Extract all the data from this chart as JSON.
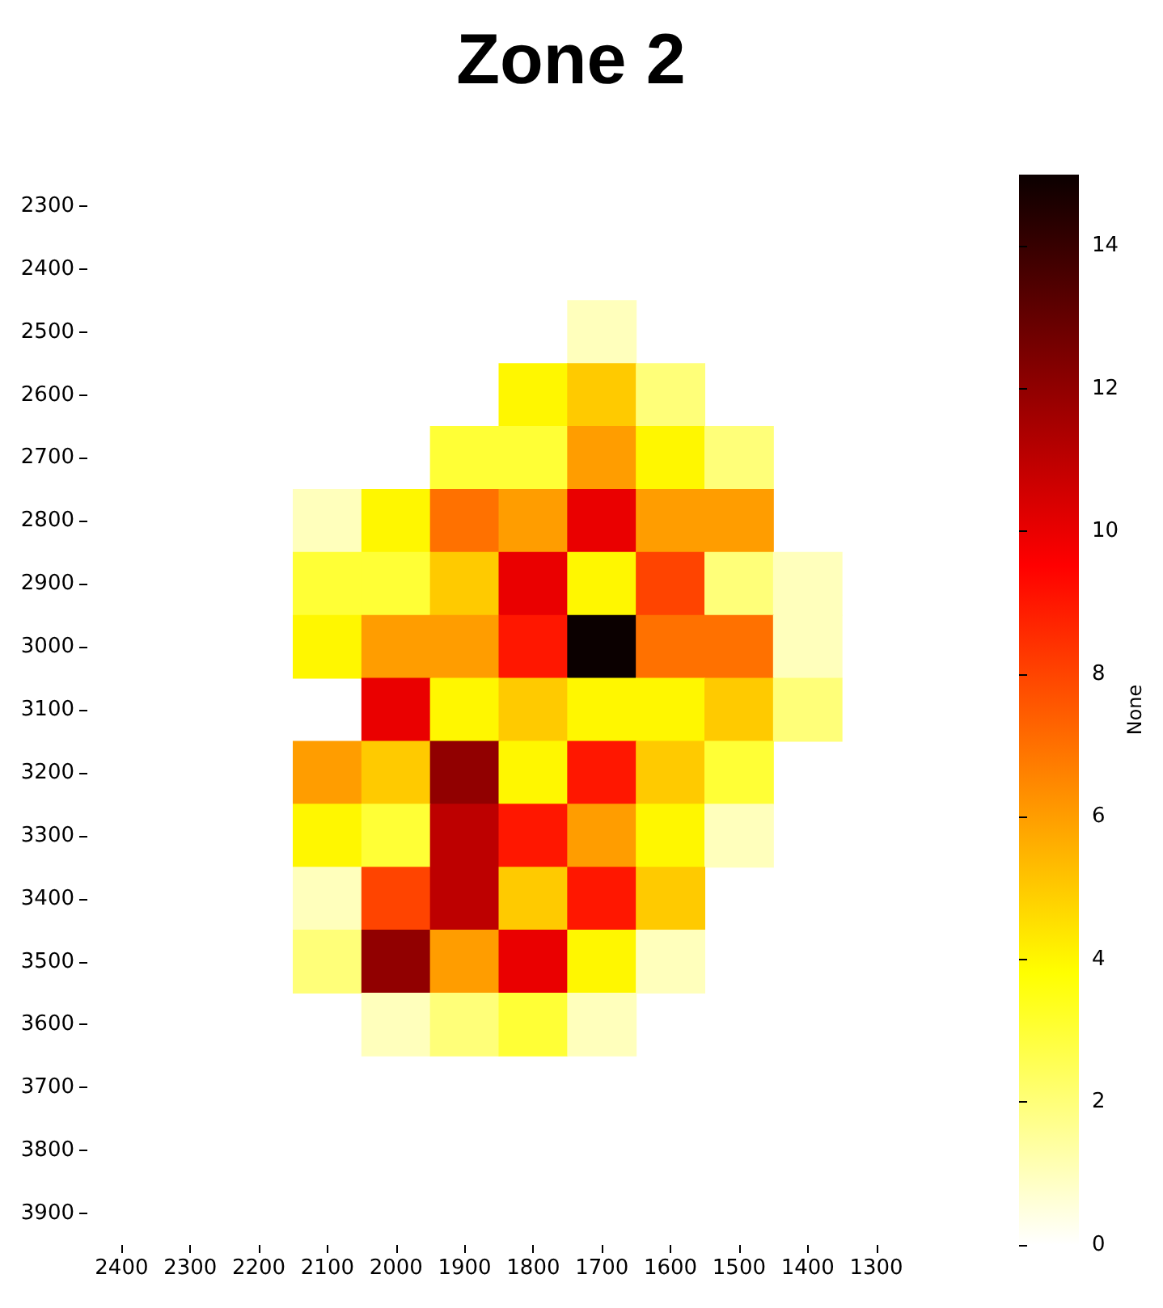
{
  "chart_data": {
    "type": "heatmap",
    "title": "Zone 2",
    "clabel": "None",
    "categories": [
      "2400",
      "2300",
      "2200",
      "2100",
      "2000",
      "1900",
      "1800",
      "1700",
      "1600",
      "1500",
      "1400",
      "1300"
    ],
    "y_categories": [
      "2300",
      "2400",
      "2500",
      "2600",
      "2700",
      "2800",
      "2900",
      "3000",
      "3100",
      "3200",
      "3300",
      "3400",
      "3500",
      "3600",
      "3700",
      "3800",
      "3900"
    ],
    "cells": [
      [
        null,
        null,
        null,
        null,
        null,
        null,
        null,
        null,
        null,
        null,
        null,
        null
      ],
      [
        null,
        null,
        null,
        null,
        null,
        null,
        null,
        null,
        null,
        null,
        null,
        null
      ],
      [
        null,
        null,
        null,
        null,
        null,
        null,
        null,
        1,
        null,
        null,
        null,
        null
      ],
      [
        null,
        null,
        null,
        null,
        null,
        null,
        4,
        5,
        2,
        null,
        null,
        null
      ],
      [
        null,
        null,
        null,
        null,
        null,
        3,
        3,
        6,
        4,
        2,
        null,
        null
      ],
      [
        null,
        null,
        null,
        1,
        4,
        7,
        6,
        10,
        6,
        6,
        null,
        null
      ],
      [
        null,
        null,
        null,
        3,
        3,
        5,
        10,
        4,
        8,
        2,
        1,
        null
      ],
      [
        null,
        null,
        null,
        4,
        6,
        6,
        9,
        15,
        7,
        7,
        1,
        null
      ],
      [
        null,
        null,
        null,
        null,
        10,
        4,
        5,
        4,
        4,
        5,
        2,
        null
      ],
      [
        null,
        null,
        null,
        6,
        5,
        12,
        4,
        9,
        5,
        3,
        null,
        null
      ],
      [
        null,
        null,
        null,
        4,
        3,
        11,
        9,
        6,
        4,
        1,
        null,
        null
      ],
      [
        null,
        null,
        null,
        1,
        8,
        11,
        5,
        9,
        5,
        null,
        null,
        null
      ],
      [
        null,
        null,
        null,
        2,
        12,
        6,
        10,
        4,
        1,
        null,
        null,
        null
      ],
      [
        null,
        null,
        null,
        null,
        1,
        2,
        3,
        1,
        null,
        null,
        null,
        null
      ],
      [
        null,
        null,
        null,
        null,
        null,
        null,
        null,
        null,
        null,
        null,
        null,
        null
      ],
      [
        null,
        null,
        null,
        null,
        null,
        null,
        null,
        null,
        null,
        null,
        null,
        null
      ],
      [
        null,
        null,
        null,
        null,
        null,
        null,
        null,
        null,
        null,
        null,
        null,
        null
      ]
    ],
    "clim": [
      0,
      15
    ],
    "cticks": [
      0,
      2,
      4,
      6,
      8,
      10,
      12,
      14
    ]
  }
}
